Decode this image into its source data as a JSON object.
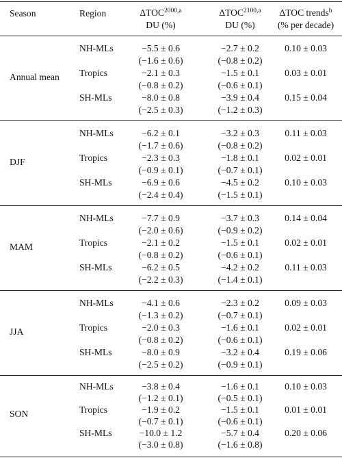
{
  "header": {
    "season": "Season",
    "region": "Region",
    "col2000_top_pre": "ΔTOC",
    "col2000_top_sup": "2000,a",
    "col2000_bottom": "DU (%)",
    "col2100_top_pre": "ΔTOC",
    "col2100_top_sup": "2100,a",
    "col2100_bottom": "DU (%)",
    "trend_top_pre": "ΔTOC trends",
    "trend_top_sup": "b",
    "trend_bottom": "(% per decade)"
  },
  "groups": [
    {
      "season": "Annual mean",
      "rows": [
        {
          "region": "NH-MLs",
          "du2000": "−5.5 ± 0.6",
          "pct2000": "(−1.6 ± 0.6)",
          "du2100": "−2.7 ± 0.2",
          "pct2100": "(−0.8 ± 0.2)",
          "trend": "0.10 ± 0.03"
        },
        {
          "region": "Tropics",
          "du2000": "−2.1 ± 0.3",
          "pct2000": "(−0.8 ± 0.2)",
          "du2100": "−1.5 ± 0.1",
          "pct2100": "(−0.6 ± 0.1)",
          "trend": "0.03 ± 0.01"
        },
        {
          "region": "SH-MLs",
          "du2000": "−8.0 ± 0.8",
          "pct2000": "(−2.5 ± 0.3)",
          "du2100": "−3.9 ± 0.4",
          "pct2100": "(−1.2 ± 0.3)",
          "trend": "0.15 ± 0.04"
        }
      ]
    },
    {
      "season": "DJF",
      "rows": [
        {
          "region": "NH-MLs",
          "du2000": "−6.2 ± 0.1",
          "pct2000": "(−1.7 ± 0.6)",
          "du2100": "−3.2 ± 0.3",
          "pct2100": "(−0.8 ± 0.2)",
          "trend": "0.11 ± 0.03"
        },
        {
          "region": "Tropics",
          "du2000": "−2.3 ± 0.3",
          "pct2000": "(−0.9 ± 0.1)",
          "du2100": "−1.8 ± 0.1",
          "pct2100": "(−0.7 ± 0.1)",
          "trend": "0.02 ± 0.01"
        },
        {
          "region": "SH-MLs",
          "du2000": "−6.9 ± 0.6",
          "pct2000": "(−2.4 ± 0.4)",
          "du2100": "−4.5 ± 0.2",
          "pct2100": "(−1.5 ± 0.1)",
          "trend": "0.10 ± 0.03"
        }
      ]
    },
    {
      "season": "MAM",
      "rows": [
        {
          "region": "NH-MLs",
          "du2000": "−7.7 ± 0.9",
          "pct2000": "(−2.0 ± 0.6)",
          "du2100": "−3.7 ± 0.3",
          "pct2100": "(−0.9 ± 0.2)",
          "trend": "0.14 ± 0.04"
        },
        {
          "region": "Tropics",
          "du2000": "−2.1 ± 0.2",
          "pct2000": "(−0.8 ± 0.2)",
          "du2100": "−1.5 ± 0.1",
          "pct2100": "(−0.6 ± 0.1)",
          "trend": "0.02 ± 0.01"
        },
        {
          "region": "SH-MLs",
          "du2000": "−6.2 ± 0.5",
          "pct2000": "(−2.2 ± 0.3)",
          "du2100": "−4.2 ± 0.2",
          "pct2100": "(−1.4 ± 0.1)",
          "trend": "0.11 ± 0.03"
        }
      ]
    },
    {
      "season": "JJA",
      "rows": [
        {
          "region": "NH-MLs",
          "du2000": "−4.1 ± 0.6",
          "pct2000": "(−1.3 ± 0.2)",
          "du2100": "−2.3 ± 0.2",
          "pct2100": "(−0.7 ± 0.1)",
          "trend": "0.09 ± 0.03"
        },
        {
          "region": "Tropics",
          "du2000": "−2.0 ± 0.3",
          "pct2000": "(−0.8 ± 0.2)",
          "du2100": "−1.6 ± 0.1",
          "pct2100": "(−0.6 ± 0.1)",
          "trend": "0.02 ± 0.01"
        },
        {
          "region": "SH-MLs",
          "du2000": "−8.0 ± 0.9",
          "pct2000": "(−2.5 ± 0.2)",
          "du2100": "−3.2 ± 0.4",
          "pct2100": "(−0.9 ± 0.1)",
          "trend": "0.19 ± 0.06"
        }
      ]
    },
    {
      "season": "SON",
      "rows": [
        {
          "region": "NH-MLs",
          "du2000": "−3.8 ± 0.4",
          "pct2000": "(−1.2 ± 0.1)",
          "du2100": "−1.6 ± 0.1",
          "pct2100": "(−0.5 ± 0.1)",
          "trend": "0.10 ± 0.03"
        },
        {
          "region": "Tropics",
          "du2000": "−1.9 ± 0.2",
          "pct2000": "(−0.7 ± 0.1)",
          "du2100": "−1.5 ± 0.1",
          "pct2100": "(−0.6 ± 0.1)",
          "trend": "0.01 ± 0.01"
        },
        {
          "region": "SH-MLs",
          "du2000": "−10.0 ± 1.2",
          "pct2000": "(−3.0 ± 0.8)",
          "du2100": "−5.7 ± 0.4",
          "pct2100": "(−1.6 ± 0.8)",
          "trend": "0.20 ± 0.06"
        }
      ]
    }
  ]
}
